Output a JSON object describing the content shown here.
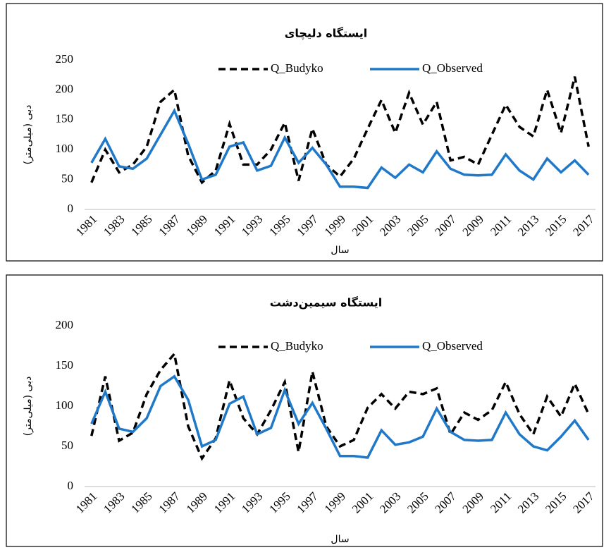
{
  "chart_data": [
    {
      "type": "line",
      "title": "ایستگاه دلیچای",
      "x_label": "سال",
      "y_label": "دبی (میلی‌متر)",
      "categories": [
        "1981",
        null,
        "1983",
        null,
        "1985",
        null,
        "1987",
        null,
        "1989",
        null,
        "1991",
        null,
        "1993",
        null,
        "1995",
        null,
        "1997",
        null,
        "1999",
        null,
        "2001",
        null,
        "2003",
        null,
        "2005",
        null,
        "2007",
        null,
        "2009",
        null,
        "2011",
        null,
        "2013",
        null,
        "2015",
        null,
        "2017"
      ],
      "ylim": [
        0,
        250
      ],
      "yticks": [
        0,
        50,
        100,
        150,
        200,
        250
      ],
      "grid": false,
      "series": [
        {
          "name": "Q_Budyko",
          "color": "#000000",
          "dashed": true,
          "values": [
            45,
            100,
            62,
            75,
            105,
            180,
            200,
            90,
            45,
            65,
            143,
            75,
            75,
            100,
            145,
            48,
            135,
            75,
            55,
            85,
            135,
            183,
            128,
            195,
            142,
            180,
            82,
            88,
            75,
            125,
            175,
            138,
            122,
            200,
            128,
            222,
            105
          ]
        },
        {
          "name": "Q_Observed",
          "color": "#1f78c8",
          "dashed": false,
          "values": [
            78,
            118,
            72,
            68,
            85,
            125,
            165,
            110,
            50,
            58,
            105,
            112,
            65,
            73,
            120,
            78,
            103,
            75,
            38,
            38,
            36,
            70,
            53,
            75,
            62,
            97,
            68,
            58,
            57,
            58,
            92,
            65,
            50,
            85,
            62,
            82,
            58
          ]
        }
      ]
    },
    {
      "type": "line",
      "title": "ایستگاه سیمین‌دشت",
      "x_label": "سال",
      "y_label": "دبی (میلی‌متر)",
      "categories": [
        "1981",
        null,
        "1983",
        null,
        "1985",
        null,
        "1987",
        null,
        "1989",
        null,
        "1991",
        null,
        "1993",
        null,
        "1995",
        null,
        "1997",
        null,
        "1999",
        null,
        "2001",
        null,
        "2003",
        null,
        "2005",
        null,
        "2007",
        null,
        "2009",
        null,
        "2011",
        null,
        "2013",
        null,
        "2015",
        null,
        "2017"
      ],
      "ylim": [
        0,
        200
      ],
      "yticks": [
        0,
        50,
        100,
        150,
        200
      ],
      "grid": false,
      "series": [
        {
          "name": "Q_Budyko",
          "color": "#000000",
          "dashed": true,
          "values": [
            63,
            137,
            57,
            67,
            115,
            145,
            165,
            75,
            35,
            60,
            132,
            85,
            65,
            95,
            130,
            43,
            143,
            75,
            50,
            58,
            98,
            115,
            97,
            118,
            115,
            122,
            65,
            92,
            83,
            95,
            130,
            90,
            65,
            112,
            87,
            128,
            90
          ]
        },
        {
          "name": "Q_Observed",
          "color": "#1f78c8",
          "dashed": false,
          "values": [
            78,
            118,
            72,
            68,
            85,
            125,
            137,
            108,
            50,
            58,
            103,
            112,
            65,
            73,
            120,
            78,
            104,
            72,
            38,
            38,
            36,
            70,
            52,
            55,
            62,
            97,
            68,
            58,
            57,
            58,
            92,
            65,
            50,
            45,
            62,
            82,
            58
          ]
        }
      ]
    }
  ]
}
